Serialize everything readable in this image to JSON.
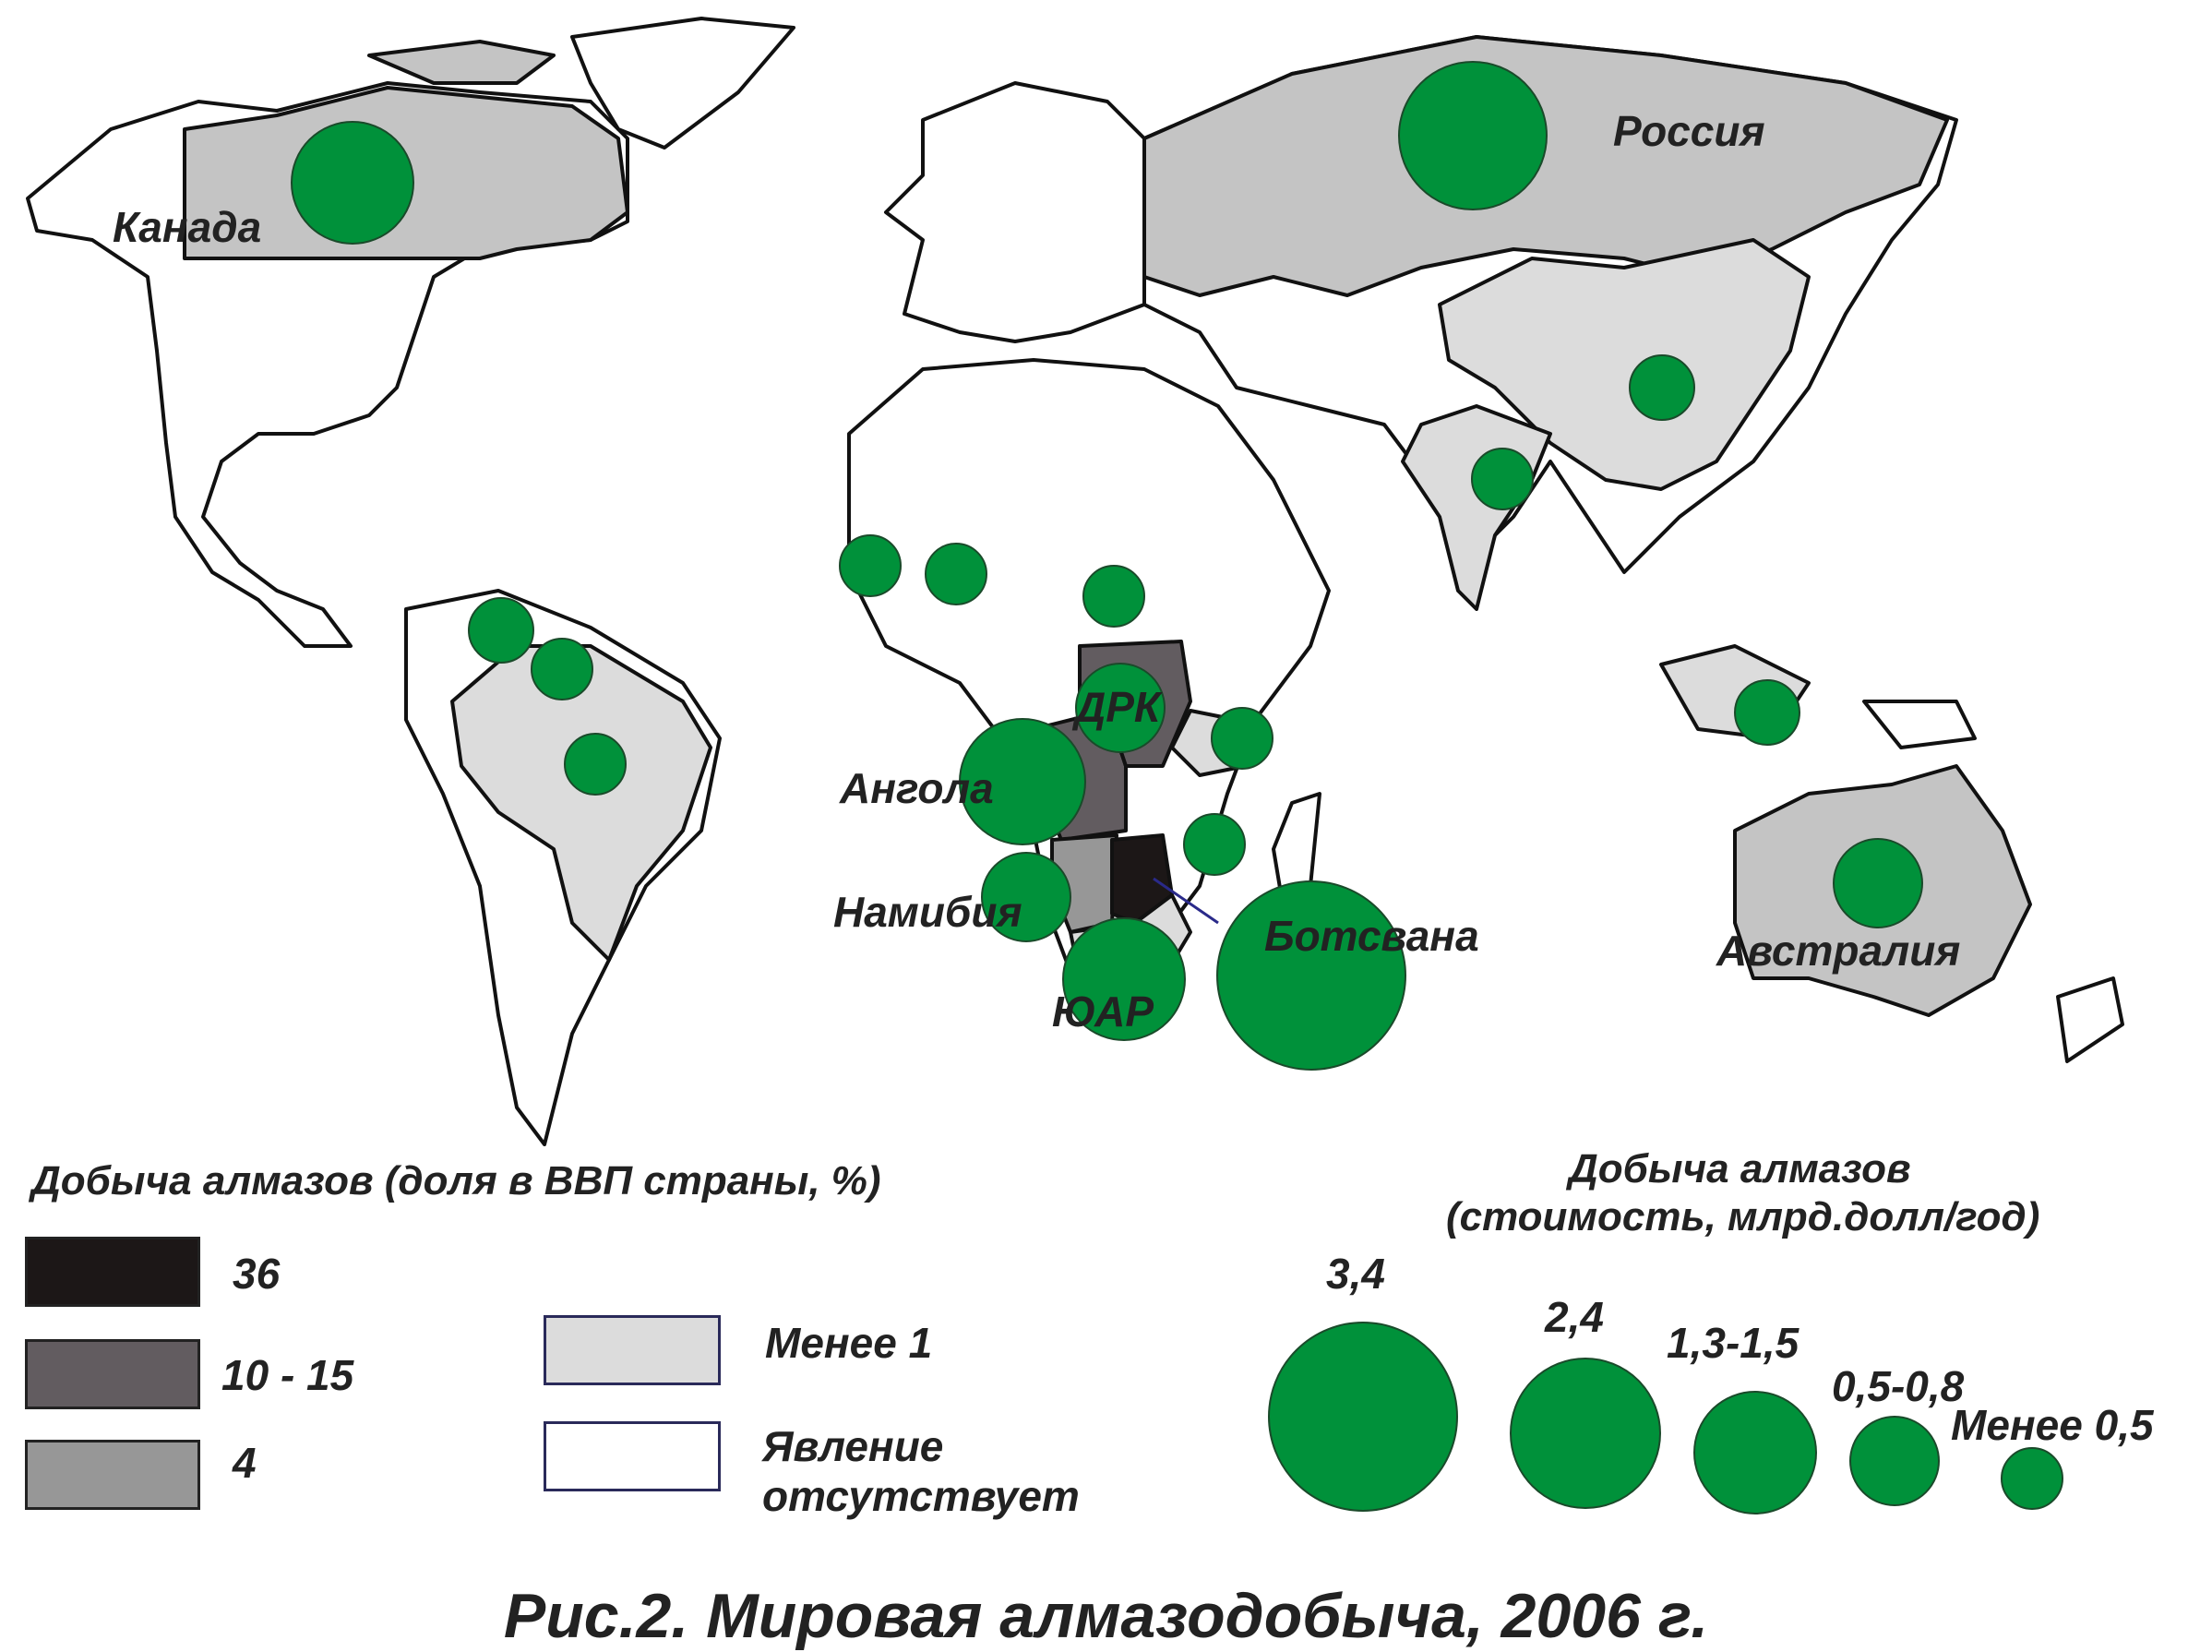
{
  "map": {
    "country_labels": {
      "canada": "Канада",
      "russia": "Россия",
      "drc": "ДРК",
      "angola": "Ангола",
      "namibia": "Намибия",
      "botswana": "Ботсвана",
      "rsa": "ЮАР",
      "australia": "Австралия"
    },
    "colors": {
      "bubble": "#00913a",
      "share_36": "#1c1717",
      "share_10_15": "#625c60",
      "share_4": "#979797",
      "share_lt1": "#dcdcdc",
      "absent": "#ffffff"
    }
  },
  "legend_share": {
    "title": "Добыча алмазов (доля в ВВП страны, %)",
    "items": [
      "36",
      "10 - 15",
      "4",
      "Менее 1",
      "Явление отсутствует"
    ]
  },
  "legend_value": {
    "title_line1": "Добыча алмазов",
    "title_line2": "(стоимость, млрд.долл/год)",
    "items": [
      "3,4",
      "2,4",
      "1,3-1,5",
      "0,5-0,8",
      "Менее 0,5"
    ]
  },
  "caption": "Рис.2. Мировая алмазодобыча, 2006 г."
}
